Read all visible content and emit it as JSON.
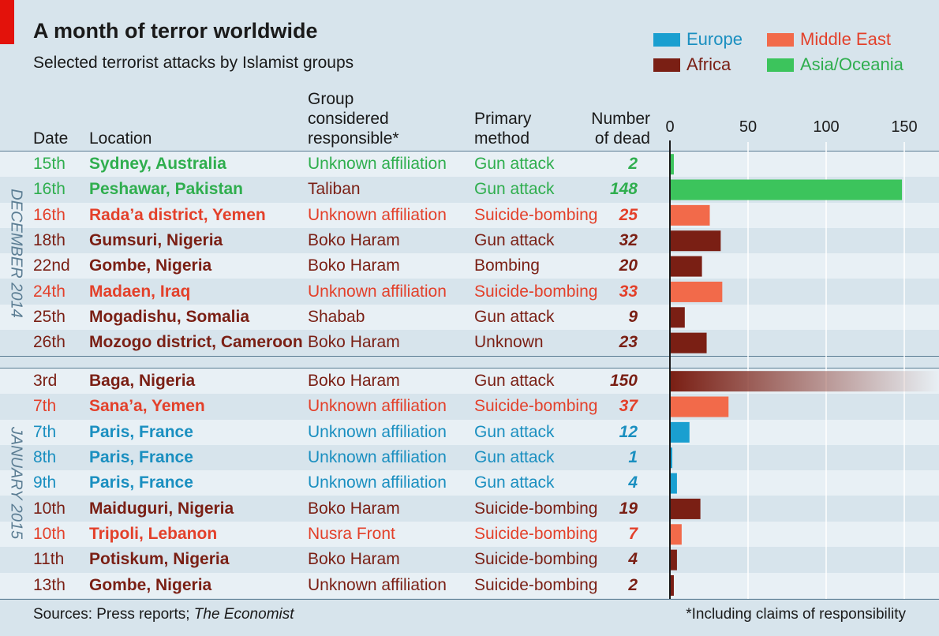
{
  "title": "A month of terror worldwide",
  "subtitle": "Selected terrorist attacks by Islamist groups",
  "legend": [
    {
      "label": "Europe",
      "color": "#1a9fd0"
    },
    {
      "label": "Middle East",
      "color": "#f26a4a"
    },
    {
      "label": "Africa",
      "color": "#7a1f14"
    },
    {
      "label": "Asia/Oceania",
      "color": "#3cc45c"
    }
  ],
  "legend_text_colors": {
    "Europe": "#1a8fc0",
    "Middle East": "#e3402a",
    "Africa": "#7a1f14",
    "Asia/Oceania": "#2fae4e"
  },
  "headers": {
    "date": "Date",
    "location": "Location",
    "group": "Group\nconsidered\nresponsible*",
    "method": "Primary\nmethod",
    "dead": "Number\nof dead"
  },
  "months": [
    "DECEMBER 2014",
    "JANUARY 2015"
  ],
  "sources_prefix": "Sources: Press reports; ",
  "sources_italic": "The Economist",
  "footnote": "*Including claims of responsibility",
  "chart_data": {
    "type": "bar",
    "orientation": "horizontal",
    "title": "A month of terror worldwide",
    "subtitle": "Selected terrorist attacks by Islamist groups",
    "xlabel": "Number of dead",
    "xlim": [
      0,
      150
    ],
    "xticks": [
      0,
      50,
      100,
      150
    ],
    "legend_position": "top-right",
    "groups": [
      {
        "label": "DECEMBER 2014",
        "rows": [
          {
            "date": "15th",
            "location": "Sydney, Australia",
            "group": "Unknown affiliation",
            "method": "Gun attack",
            "dead": 2,
            "region": "Asia/Oceania"
          },
          {
            "date": "16th",
            "location": "Peshawar, Pakistan",
            "group": "Taliban",
            "method": "Gun attack",
            "dead": 148,
            "region": "Asia/Oceania"
          },
          {
            "date": "16th",
            "location": "Rada’a district, Yemen",
            "group": "Unknown affiliation",
            "method": "Suicide-bombing",
            "dead": 25,
            "region": "Middle East"
          },
          {
            "date": "18th",
            "location": "Gumsuri, Nigeria",
            "group": "Boko Haram",
            "method": "Gun attack",
            "dead": 32,
            "region": "Africa"
          },
          {
            "date": "22nd",
            "location": "Gombe, Nigeria",
            "group": "Boko Haram",
            "method": "Bombing",
            "dead": 20,
            "region": "Africa"
          },
          {
            "date": "24th",
            "location": "Madaen, Iraq",
            "group": "Unknown affiliation",
            "method": "Suicide-bombing",
            "dead": 33,
            "region": "Middle East"
          },
          {
            "date": "25th",
            "location": "Mogadishu, Somalia",
            "group": "Shabab",
            "method": "Gun attack",
            "dead": 9,
            "region": "Africa"
          },
          {
            "date": "26th",
            "location": "Mozogo district, Cameroon",
            "group": "Boko Haram",
            "method": "Unknown",
            "dead": 23,
            "region": "Africa"
          }
        ]
      },
      {
        "label": "JANUARY 2015",
        "rows": [
          {
            "date": "3rd",
            "location": "Baga, Nigeria",
            "group": "Boko Haram",
            "method": "Gun attack",
            "dead": 150,
            "region": "Africa"
          },
          {
            "date": "7th",
            "location": "Sana’a, Yemen",
            "group": "Unknown affiliation",
            "method": "Suicide-bombing",
            "dead": 37,
            "region": "Middle East"
          },
          {
            "date": "7th",
            "location": "Paris, France",
            "group": "Unknown affiliation",
            "method": "Gun attack",
            "dead": 12,
            "region": "Europe"
          },
          {
            "date": "8th",
            "location": "Paris, France",
            "group": "Unknown affiliation",
            "method": "Gun attack",
            "dead": 1,
            "region": "Europe"
          },
          {
            "date": "9th",
            "location": "Paris, France",
            "group": "Unknown affiliation",
            "method": "Gun attack",
            "dead": 4,
            "region": "Europe"
          },
          {
            "date": "10th",
            "location": "Maiduguri, Nigeria",
            "group": "Boko Haram",
            "method": "Suicide-bombing",
            "dead": 19,
            "region": "Africa"
          },
          {
            "date": "10th",
            "location": "Tripoli, Lebanon",
            "group": "Nusra Front",
            "method": "Suicide-bombing",
            "dead": 7,
            "region": "Middle East"
          },
          {
            "date": "11th",
            "location": "Potiskum, Nigeria",
            "group": "Boko Haram",
            "method": "Suicide-bombing",
            "dead": 4,
            "region": "Africa"
          },
          {
            "date": "13th",
            "location": "Gombe, Nigeria",
            "group": "Unknown affiliation",
            "method": "Suicide-bombing",
            "dead": 2,
            "region": "Africa"
          }
        ]
      }
    ]
  }
}
